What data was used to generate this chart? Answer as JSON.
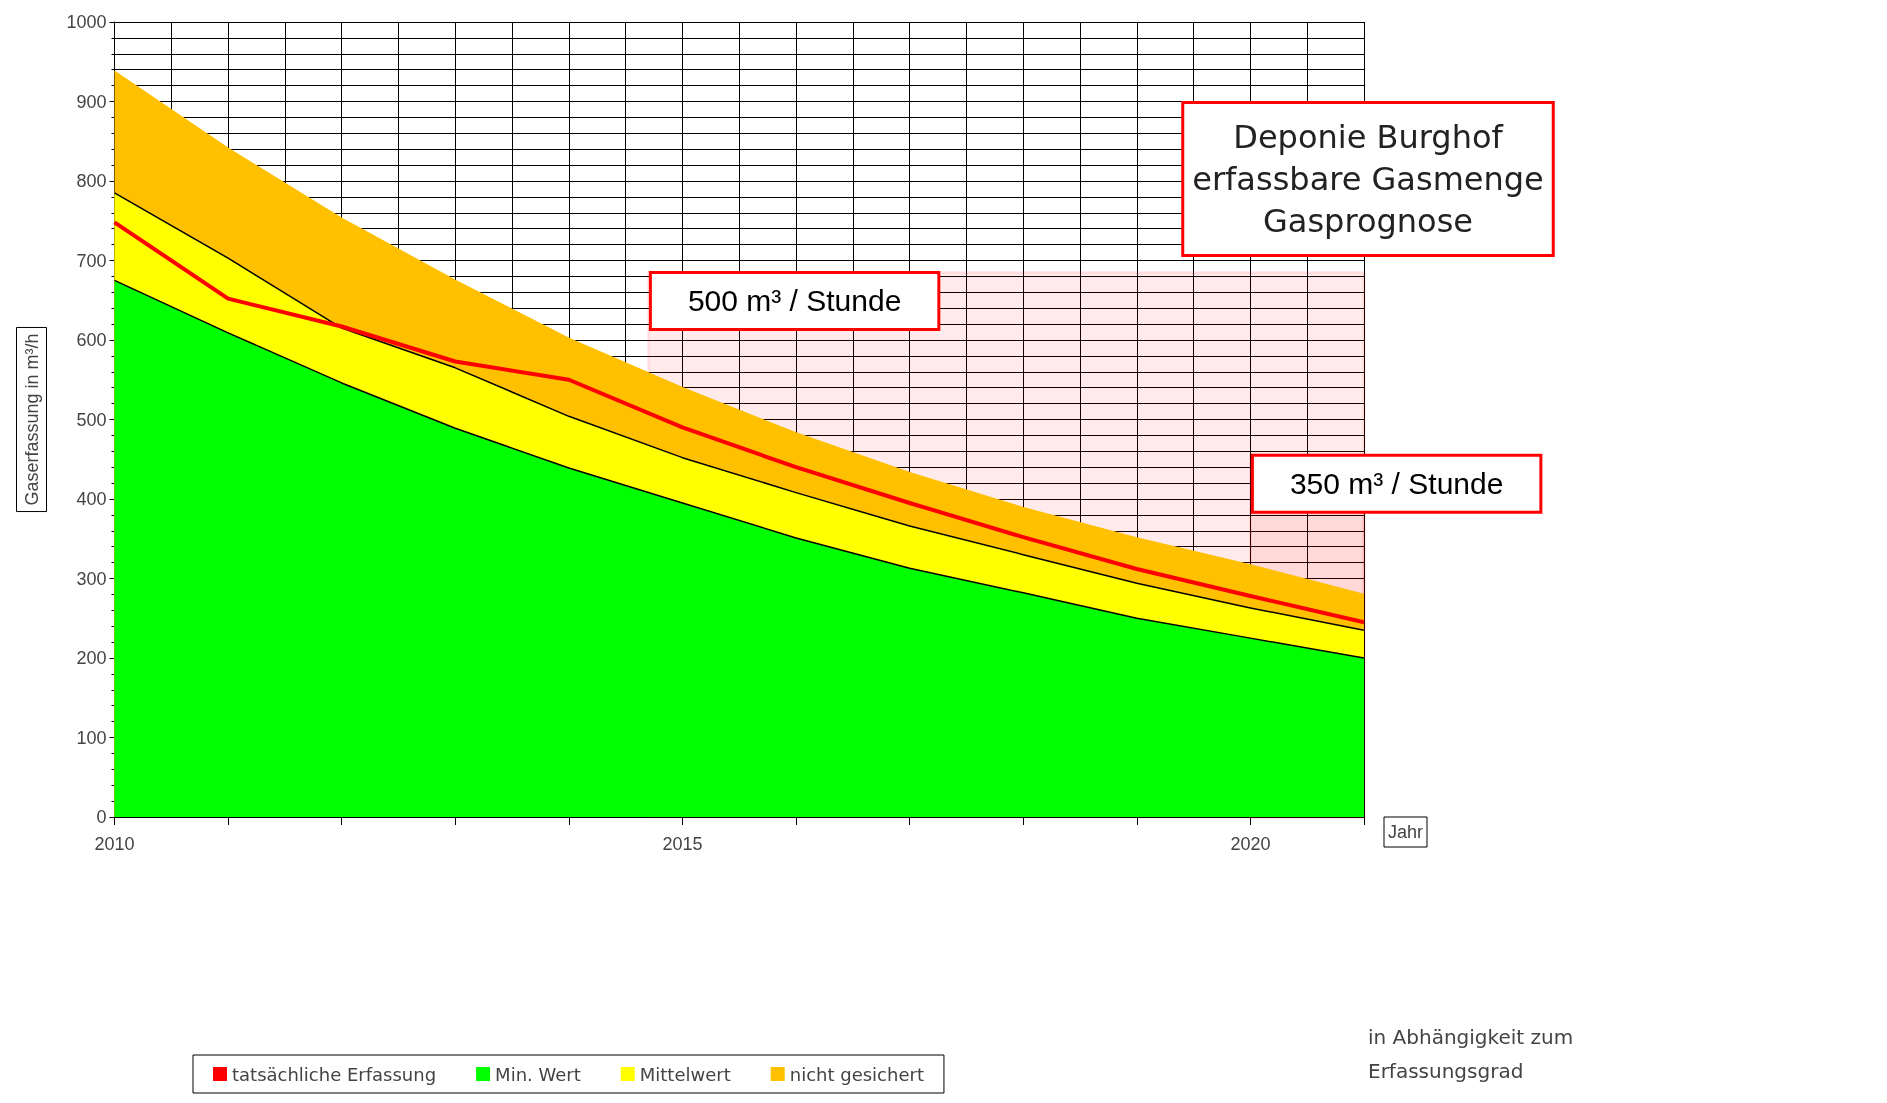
{
  "chart_data": {
    "type": "area",
    "stacked": true,
    "ylabel": "Gaserfassung in m³/h",
    "xlabel": "Jahr",
    "x": [
      2010,
      2011,
      2012,
      2013,
      2014,
      2015,
      2016,
      2017,
      2018,
      2019,
      2020,
      2021
    ],
    "xlim": [
      2010,
      2021
    ],
    "xticks": [
      2010,
      {
        "value": 2011,
        "label": null
      },
      {
        "value": 2012,
        "label": null
      },
      {
        "value": 2013,
        "label": null
      },
      {
        "value": 2014,
        "label": null
      },
      2015,
      {
        "value": 2016,
        "label": null
      },
      {
        "value": 2017,
        "label": null
      },
      {
        "value": 2018,
        "label": null
      },
      {
        "value": 2019,
        "label": null
      },
      2020,
      {
        "value": 2021,
        "label": null
      }
    ],
    "ylim": [
      0,
      1000
    ],
    "yticks": [
      0,
      100,
      200,
      300,
      400,
      500,
      600,
      700,
      800,
      900,
      1000
    ],
    "grid": true,
    "legend": "bottom",
    "line_style": "solid",
    "marker": "none",
    "series": [
      {
        "name": "tatsächliche Erfassung",
        "type": "line",
        "color": "#ff0000",
        "values": [
          748,
          652,
          617,
          573,
          550,
          490,
          440,
          395,
          352,
          312,
          278,
          245
        ]
      },
      {
        "name": "Min. Wert",
        "color": "#00ff00",
        "values": [
          675,
          609,
          546,
          489,
          439,
          395,
          351,
          313,
          282,
          250,
          225,
          200
        ]
      },
      {
        "name": "Mittelwert",
        "color": "#ffff00",
        "values": [
          110,
          94,
          69,
          76,
          65,
          57,
          57,
          53,
          48,
          44,
          38,
          35
        ]
      },
      {
        "name": "nicht gesichert",
        "color": "#ffc000",
        "values": [
          153,
          138,
          138,
          110,
          98,
          88,
          75,
          67,
          59,
          57,
          54,
          45
        ]
      }
    ],
    "bands": [
      {
        "axis": "x",
        "from": 2014.7,
        "to": 2021,
        "label": "500 m³ / Stunde",
        "color": "#ff0000"
      },
      {
        "axis": "x",
        "from": 2020,
        "to": 2021,
        "label": "350 m³ / Stunde",
        "color": "#ff0000"
      }
    ],
    "annotations": [
      "Deponie Burghof\nerfassbare Gasmenge\nGasprognose",
      "in Abhängigkeit zum Erfassungsgrad"
    ]
  }
}
